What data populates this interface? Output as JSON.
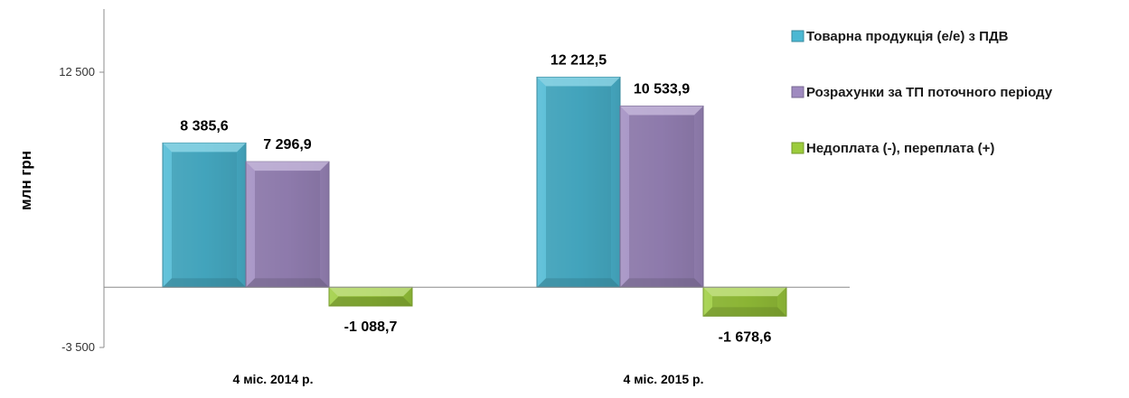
{
  "chart_data": {
    "type": "bar",
    "ylabel": "млн грн",
    "ylim": [
      -3500,
      12500
    ],
    "yticks": [
      {
        "value": 12500,
        "label": "12 500"
      },
      {
        "value": -3500,
        "label": "-3 500"
      }
    ],
    "categories": [
      "4 міс. 2014 р.",
      "4 міс. 2015 р."
    ],
    "series": [
      {
        "name": "Товарна продукція (е/е) з ПДВ",
        "values": [
          8385.6,
          12212.5
        ],
        "labels": [
          "8 385,6",
          "12 212,5"
        ],
        "color": "#4bb8d3"
      },
      {
        "name": "Розрахунки за ТП поточного періоду",
        "values": [
          7296.9,
          10533.9
        ],
        "labels": [
          "7 296,9",
          "10 533,9"
        ],
        "color": "#9f8ac0"
      },
      {
        "name": "Недоплата (-), переплата (+)",
        "values": [
          -1088.7,
          -1678.6
        ],
        "labels": [
          "-1 088,7",
          "-1 678,6"
        ],
        "color": "#9ccc3c"
      }
    ],
    "legend_position": "right",
    "grid": false
  }
}
